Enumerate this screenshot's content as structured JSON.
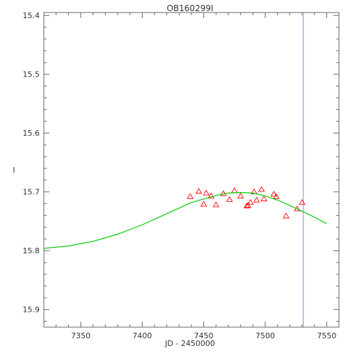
{
  "chart_data": {
    "type": "scatter",
    "title": "OB160299I",
    "xlabel": "JD - 2450000",
    "ylabel": "I",
    "xlim": [
      7320,
      7560
    ],
    "ylim": [
      15.395,
      15.93
    ],
    "y_inverted": true,
    "x_ticks": [
      7350,
      7400,
      7450,
      7500,
      7550
    ],
    "x_tick_labels": [
      "7350",
      "7400",
      "7450",
      "7500",
      "7550"
    ],
    "y_ticks": [
      15.4,
      15.5,
      15.6,
      15.7,
      15.8,
      15.9
    ],
    "y_tick_labels": [
      "15.4",
      "15.5",
      "15.6",
      "15.7",
      "15.8",
      "15.9"
    ],
    "grid": false,
    "series": [
      {
        "kind": "points",
        "marker": "triangle",
        "color": "#ff0000",
        "points": [
          {
            "x": 7439,
            "y": 15.708
          },
          {
            "x": 7446,
            "y": 15.699
          },
          {
            "x": 7450,
            "y": 15.721
          },
          {
            "x": 7452,
            "y": 15.702
          },
          {
            "x": 7456,
            "y": 15.707
          },
          {
            "x": 7460,
            "y": 15.722
          },
          {
            "x": 7466,
            "y": 15.703
          },
          {
            "x": 7471,
            "y": 15.713
          },
          {
            "x": 7475,
            "y": 15.698
          },
          {
            "x": 7480,
            "y": 15.707
          },
          {
            "x": 7485,
            "y": 15.724
          },
          {
            "x": 7486,
            "y": 15.723
          },
          {
            "x": 7488,
            "y": 15.718
          },
          {
            "x": 7491,
            "y": 15.7
          },
          {
            "x": 7493,
            "y": 15.714
          },
          {
            "x": 7497,
            "y": 15.696
          },
          {
            "x": 7499,
            "y": 15.712
          },
          {
            "x": 7507,
            "y": 15.704
          },
          {
            "x": 7509,
            "y": 15.708
          },
          {
            "x": 7517,
            "y": 15.741
          },
          {
            "x": 7526,
            "y": 15.729
          },
          {
            "x": 7530,
            "y": 15.718
          }
        ]
      },
      {
        "kind": "model",
        "color": "#00cc00",
        "x": [
          7320,
          7340,
          7360,
          7380,
          7400,
          7420,
          7440,
          7460,
          7470,
          7480,
          7490,
          7500,
          7510,
          7520,
          7530,
          7540,
          7550
        ],
        "y": [
          15.796,
          15.792,
          15.784,
          15.772,
          15.756,
          15.737,
          15.718,
          15.706,
          15.702,
          15.701,
          15.702,
          15.707,
          15.714,
          15.723,
          15.733,
          15.743,
          15.754
        ]
      }
    ],
    "vertical_lines": [
      {
        "x": 7531,
        "color": "#8888cc"
      }
    ]
  }
}
